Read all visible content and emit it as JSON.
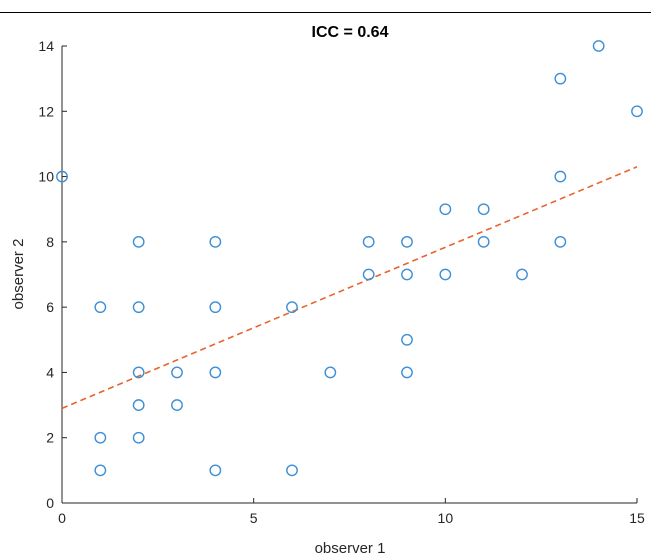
{
  "chart_data": {
    "type": "scatter",
    "title": "ICC = 0.64",
    "xlabel": "observer 1",
    "ylabel": "observer 2",
    "xlim": [
      0,
      15
    ],
    "ylim": [
      0,
      14
    ],
    "xticks": [
      0,
      5,
      10,
      15
    ],
    "yticks": [
      0,
      2,
      4,
      6,
      8,
      10,
      12,
      14
    ],
    "grid": false,
    "series": [
      {
        "marker": "open-circle",
        "color": "#3d8fd6",
        "points": [
          [
            0,
            10
          ],
          [
            1,
            6
          ],
          [
            1,
            2
          ],
          [
            1,
            1
          ],
          [
            2,
            8
          ],
          [
            2,
            6
          ],
          [
            2,
            4
          ],
          [
            2,
            3
          ],
          [
            2,
            2
          ],
          [
            3,
            4
          ],
          [
            3,
            3
          ],
          [
            4,
            8
          ],
          [
            4,
            6
          ],
          [
            4,
            4
          ],
          [
            4,
            1
          ],
          [
            6,
            6
          ],
          [
            6,
            1
          ],
          [
            7,
            4
          ],
          [
            8,
            8
          ],
          [
            8,
            7
          ],
          [
            9,
            8
          ],
          [
            9,
            7
          ],
          [
            9,
            5
          ],
          [
            9,
            4
          ],
          [
            10,
            9
          ],
          [
            10,
            7
          ],
          [
            11,
            9
          ],
          [
            11,
            8
          ],
          [
            12,
            7
          ],
          [
            13,
            13
          ],
          [
            13,
            10
          ],
          [
            13,
            8
          ],
          [
            14,
            14
          ],
          [
            15,
            12
          ]
        ]
      }
    ],
    "fit_line": {
      "style": "dashed",
      "color": "#e8632f",
      "x": [
        0,
        15
      ],
      "y": [
        2.9,
        10.3
      ]
    }
  }
}
